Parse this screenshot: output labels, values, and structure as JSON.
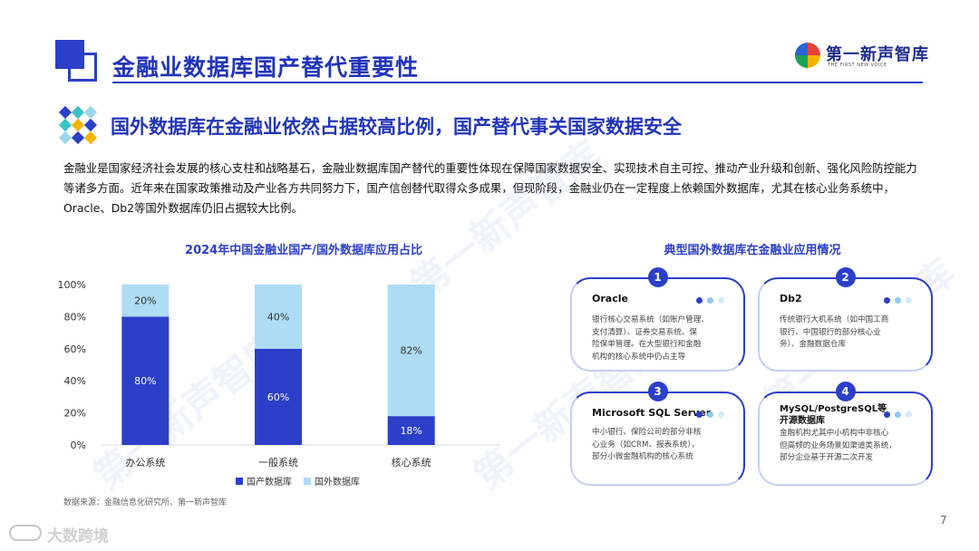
{
  "header": {
    "title": "金融业数据库国产替代重要性",
    "logo_name": "第一新声智库",
    "logo_sub": "THE FIRST NEW VOICE"
  },
  "subtitle": "国外数据库在金融业依然占据较高比例，国产替代事关国家数据安全",
  "paragraph": [
    "金融业是国家经济社会发展的核心支柱和战略基石，金融业数据库国产替代的重要性体现在保障国家数据安全、实现技术自主可控、推动产业升级和创新、强化风险防控能力",
    "等诸多方面。近年来在国家政策推动及产业各方共同努力下，国产信创替代取得众多成果，但现阶段，金融业仍在一定程度上依赖国外数据库，尤其在核心业务系统中，",
    "Oracle、Db2等国外数据库仍旧占据较大比例。"
  ],
  "chart_data": {
    "type": "bar",
    "stacked": true,
    "title": "2024年中国金融业国产/国外数据库应用占比",
    "categories": [
      "办公系统",
      "一般系统",
      "核心系统"
    ],
    "series": [
      {
        "name": "国产数据库",
        "values": [
          80,
          60,
          18
        ],
        "color": "#2b3fc8"
      },
      {
        "name": "国外数据库",
        "values": [
          20,
          40,
          82
        ],
        "color": "#aedcf5"
      }
    ],
    "data_labels_suffix": "%",
    "ylim": [
      0,
      100
    ],
    "yticks": [
      "0%",
      "20%",
      "40%",
      "60%",
      "80%",
      "100%"
    ],
    "legend_position": "bottom",
    "grid": false
  },
  "source": "数据来源：金融信息化研究所、第一新声智库",
  "right_panel": {
    "title": "典型国外数据库在金融业应用情况",
    "cards": [
      {
        "num": "1",
        "title": "Oracle",
        "lines": [
          "银行核心交易系统（如账户管理、",
          "支付清算）、证券交易系统、保",
          "险保单管理。在大型银行和金融",
          "机构的核心系统中仍占主导"
        ]
      },
      {
        "num": "2",
        "title": "Db2",
        "lines": [
          "传统银行大机系统（如中国工商",
          "银行、中国银行的部分核心业",
          "务）、金融数据仓库"
        ]
      },
      {
        "num": "3",
        "title": "Microsoft SQL Server",
        "lines": [
          "中小银行、保险公司的部分非核",
          "心业务（如CRM、报表系统），",
          "部分小微金融机构的核心系统"
        ]
      },
      {
        "num": "4",
        "title": "MySQL/PostgreSQL等开源数据库",
        "title_lines": [
          "MySQL/PostgreSQL等",
          "开源数据库"
        ],
        "lines": [
          "金融机构尤其中小机构中非核心",
          "但高频的业务场景如渠道类系统，",
          "部分企业基于开源二次开发"
        ]
      }
    ]
  },
  "watermark_text": "第一新声智库",
  "page_number": "7",
  "footer_brand": "大数跨境",
  "colors": {
    "primary": "#2b3fc8",
    "light": "#aedcf5"
  }
}
